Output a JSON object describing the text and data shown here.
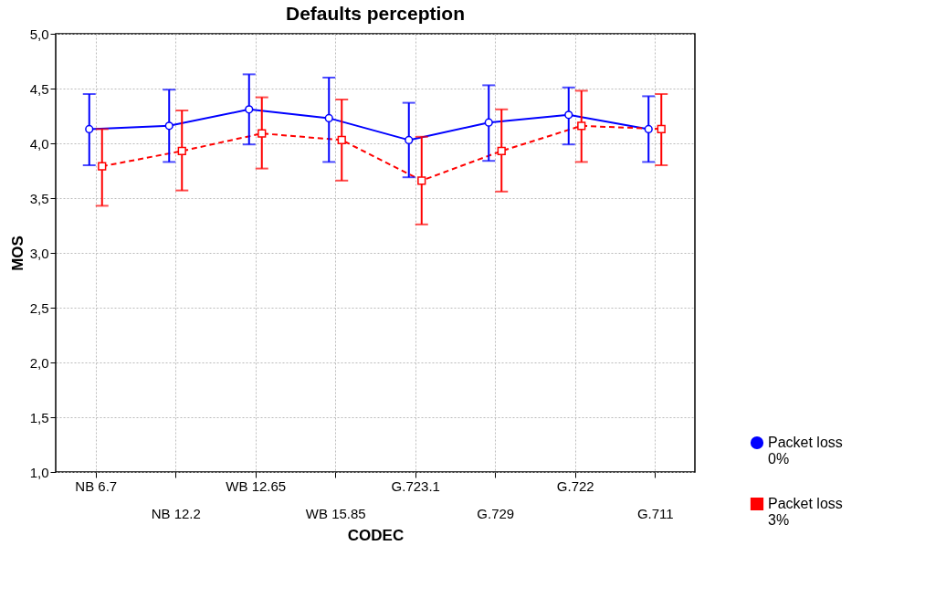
{
  "chart_data": {
    "type": "line",
    "title": "Defaults perception",
    "xlabel": "CODEC",
    "ylabel": "MOS",
    "categories": [
      "NB 6.7",
      "NB 12.2",
      "WB 12.65",
      "WB 15.85",
      "G.723.1",
      "G.729",
      "G.722",
      "G.711"
    ],
    "ylim": [
      1.0,
      5.0
    ],
    "yticks": [
      {
        "value": 1.0,
        "label": "1,0"
      },
      {
        "value": 1.5,
        "label": "1,5"
      },
      {
        "value": 2.0,
        "label": "2,0"
      },
      {
        "value": 2.5,
        "label": "2,5"
      },
      {
        "value": 3.0,
        "label": "3,0"
      },
      {
        "value": 3.5,
        "label": "3,5"
      },
      {
        "value": 4.0,
        "label": "4,0"
      },
      {
        "value": 4.5,
        "label": "4,5"
      },
      {
        "value": 5.0,
        "label": "5,0"
      }
    ],
    "grid": true,
    "legend": "bottom right",
    "series": [
      {
        "name": "Packet loss 0%",
        "color": "#0000ff",
        "marker": "circle",
        "line_style": "solid",
        "values": [
          4.13,
          4.16,
          4.31,
          4.23,
          4.03,
          4.19,
          4.26,
          4.13
        ],
        "errors": [
          [
            3.8,
            4.45
          ],
          [
            3.83,
            4.49
          ],
          [
            3.99,
            4.63
          ],
          [
            3.83,
            4.6
          ],
          [
            3.69,
            4.37
          ],
          [
            3.84,
            4.53
          ],
          [
            3.99,
            4.51
          ],
          [
            3.83,
            4.43
          ]
        ]
      },
      {
        "name": "Packet loss 3%",
        "color": "#ff0000",
        "marker": "square",
        "line_style": "dashed",
        "values": [
          3.79,
          3.93,
          4.09,
          4.03,
          3.66,
          3.93,
          4.16,
          4.13
        ],
        "errors": [
          [
            3.43,
            4.13
          ],
          [
            3.57,
            4.3
          ],
          [
            3.77,
            4.42
          ],
          [
            3.66,
            4.4
          ],
          [
            3.26,
            4.06
          ],
          [
            3.56,
            4.31
          ],
          [
            3.83,
            4.48
          ],
          [
            3.8,
            4.45
          ]
        ]
      }
    ]
  }
}
